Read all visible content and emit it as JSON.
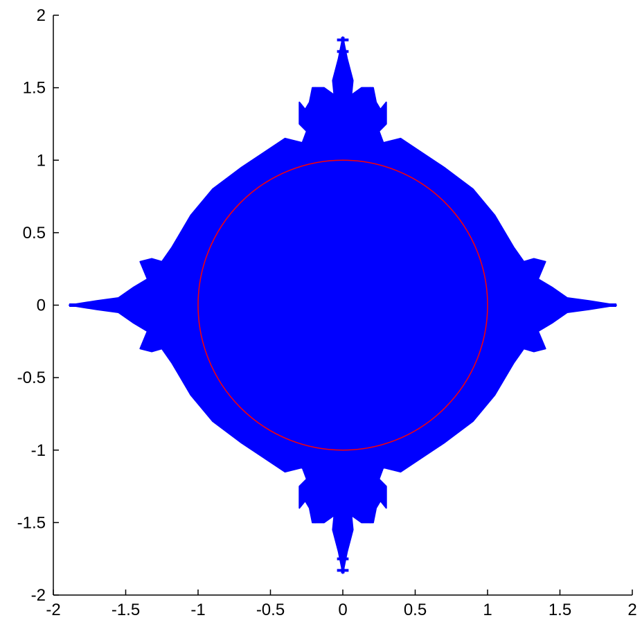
{
  "chart_data": {
    "type": "scatter",
    "title": "",
    "xlabel": "",
    "ylabel": "",
    "xlim": [
      -2,
      2
    ],
    "ylim": [
      -2,
      2
    ],
    "grid": false,
    "box": "left-bottom axes only",
    "xticks": [
      -2,
      -1.5,
      -1,
      -0.5,
      0,
      0.5,
      1,
      1.5,
      2
    ],
    "xtick_labels": [
      "-2",
      "-1.5",
      "-1",
      "-0.5",
      "0",
      "0.5",
      "1",
      "1.5",
      "2"
    ],
    "yticks": [
      -2,
      -1.5,
      -1,
      -0.5,
      0,
      0.5,
      1,
      1.5,
      2
    ],
    "ytick_labels": [
      "-2",
      "-1.5",
      "-1",
      "-0.5",
      "0",
      "0.5",
      "1",
      "1.5",
      "2"
    ],
    "series": [
      {
        "kind": "filled-fractal-region",
        "color": "#0000ff",
        "symmetry": "four-fold (x and y axes)",
        "spike_tip_x": 1.89,
        "spike_tip_y": 1.85,
        "outline": [
          [
            0,
            1.85
          ],
          [
            0.03,
            1.7
          ],
          [
            0.07,
            1.55
          ],
          [
            0.06,
            1.45
          ],
          [
            0.13,
            1.5
          ],
          [
            0.21,
            1.5
          ],
          [
            0.23,
            1.4
          ],
          [
            0.26,
            1.35
          ],
          [
            0.3,
            1.4
          ],
          [
            0.3,
            1.25
          ],
          [
            0.25,
            1.2
          ],
          [
            0.28,
            1.12
          ],
          [
            0.4,
            1.15
          ],
          [
            0.55,
            1.05
          ],
          [
            0.7,
            0.95
          ],
          [
            0.9,
            0.8
          ],
          [
            1.05,
            0.62
          ],
          [
            1.18,
            0.4
          ],
          [
            1.25,
            0.3
          ],
          [
            1.32,
            0.32
          ],
          [
            1.4,
            0.3
          ],
          [
            1.35,
            0.18
          ],
          [
            1.45,
            0.12
          ],
          [
            1.55,
            0.05
          ],
          [
            1.7,
            0.03
          ],
          [
            1.89,
            0.0
          ]
        ]
      },
      {
        "kind": "circle",
        "color": "#ff0000",
        "center": [
          0,
          0
        ],
        "radius": 1
      }
    ]
  }
}
